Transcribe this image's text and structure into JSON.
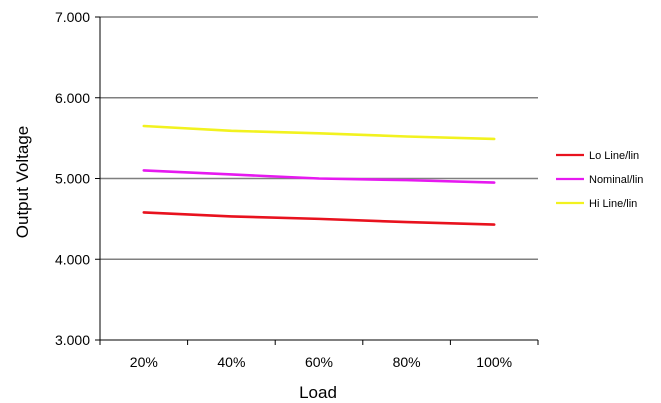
{
  "chart_data": {
    "type": "line",
    "title": "",
    "xlabel": "Load",
    "ylabel": "Output Voltage",
    "categories": [
      "20%",
      "40%",
      "60%",
      "80%",
      "100%"
    ],
    "yticks": [
      "3.000",
      "4.000",
      "5.000",
      "6.000",
      "7.000"
    ],
    "ylim": [
      3.0,
      7.0
    ],
    "grid": true,
    "legend_position": "right",
    "series": [
      {
        "name": "Lo Line/lin",
        "color": "#e8121e",
        "values": [
          4.58,
          4.53,
          4.5,
          4.46,
          4.43
        ]
      },
      {
        "name": "Nominal/lin",
        "color": "#e619f0",
        "values": [
          5.1,
          5.05,
          5.0,
          4.98,
          4.95
        ]
      },
      {
        "name": "Hi Line/lin",
        "color": "#f2f21f",
        "values": [
          5.65,
          5.59,
          5.56,
          5.52,
          5.49
        ]
      }
    ]
  }
}
